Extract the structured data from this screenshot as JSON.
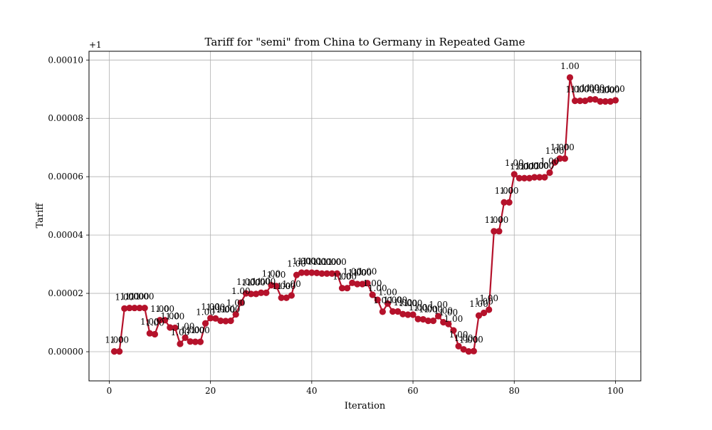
{
  "chart_data": {
    "type": "line",
    "title": "Tariff for \"semi\" from China to Germany in Repeated Game",
    "xlabel": "Iteration",
    "ylabel": "Tariff",
    "offset_text": "+1",
    "xlim": [
      -4,
      105
    ],
    "ylim": [
      -1e-05,
      0.000103
    ],
    "x_ticks": [
      0,
      20,
      40,
      60,
      80,
      100
    ],
    "x_tick_labels": [
      "0",
      "20",
      "40",
      "60",
      "80",
      "100"
    ],
    "y_ticks": [
      0,
      2e-05,
      4e-05,
      6e-05,
      8e-05,
      0.0001
    ],
    "y_tick_labels": [
      "0.00000",
      "0.00002",
      "0.00004",
      "0.00006",
      "0.00008",
      "0.00010"
    ],
    "grid": true,
    "line_color": "#b5122b",
    "point_label": "1.00",
    "series": [
      {
        "x": [
          1,
          2,
          3,
          4,
          5,
          6,
          7,
          8,
          9,
          10,
          11,
          12,
          13,
          14,
          15,
          16,
          17,
          18,
          19,
          20,
          21,
          22,
          23,
          24,
          25,
          26,
          27,
          28,
          29,
          30,
          31,
          32,
          33,
          34,
          35,
          36,
          37,
          38,
          39,
          40,
          41,
          42,
          43,
          44,
          45,
          46,
          47,
          48,
          49,
          50,
          51,
          52,
          53,
          54,
          55,
          56,
          57,
          58,
          59,
          60,
          61,
          62,
          63,
          64,
          65,
          66,
          67,
          68,
          69,
          70,
          71,
          72,
          73,
          74,
          75,
          76,
          77,
          78,
          79,
          80,
          81,
          82,
          83,
          84,
          85,
          86,
          87,
          88,
          89,
          90,
          91,
          92,
          93,
          94,
          95,
          96,
          97,
          98,
          99,
          100
        ],
        "values": [
          1e-07,
          1e-07,
          1.48e-05,
          1.5e-05,
          1.5e-05,
          1.5e-05,
          1.5e-05,
          6.3e-06,
          6e-06,
          1.08e-05,
          1.08e-05,
          8.3e-06,
          8.2e-06,
          2.7e-06,
          4.8e-06,
          3.5e-06,
          3.4e-06,
          3.4e-06,
          9.7e-06,
          1.15e-05,
          1.14e-05,
          1.06e-05,
          1.05e-05,
          1.06e-05,
          1.28e-05,
          1.68e-05,
          2e-05,
          1.98e-05,
          1.98e-05,
          2.02e-05,
          2.02e-05,
          2.28e-05,
          2.25e-05,
          1.85e-05,
          1.85e-05,
          1.93e-05,
          2.63e-05,
          2.71e-05,
          2.71e-05,
          2.71e-05,
          2.7e-05,
          2.68e-05,
          2.68e-05,
          2.68e-05,
          2.68e-05,
          2.18e-05,
          2.18e-05,
          2.36e-05,
          2.32e-05,
          2.32e-05,
          2.35e-05,
          1.95e-05,
          1.78e-05,
          1.37e-05,
          1.65e-05,
          1.38e-05,
          1.38e-05,
          1.29e-05,
          1.27e-05,
          1.27e-05,
          1.12e-05,
          1.11e-05,
          1.06e-05,
          1.06e-05,
          1.22e-05,
          1.01e-05,
          9.5e-06,
          7.3e-06,
          1.9e-06,
          8e-07,
          1e-07,
          2e-07,
          1.24e-05,
          1.33e-05,
          1.44e-05,
          4.13e-05,
          4.13e-05,
          5.12e-05,
          5.12e-05,
          6.08e-05,
          5.95e-05,
          5.95e-05,
          5.95e-05,
          5.98e-05,
          5.98e-05,
          5.98e-05,
          6.14e-05,
          6.49e-05,
          6.62e-05,
          6.62e-05,
          9.4e-05,
          8.6e-05,
          8.6e-05,
          8.6e-05,
          8.65e-05,
          8.65e-05,
          8.58e-05,
          8.58e-05,
          8.58e-05,
          8.62e-05
        ]
      }
    ]
  }
}
